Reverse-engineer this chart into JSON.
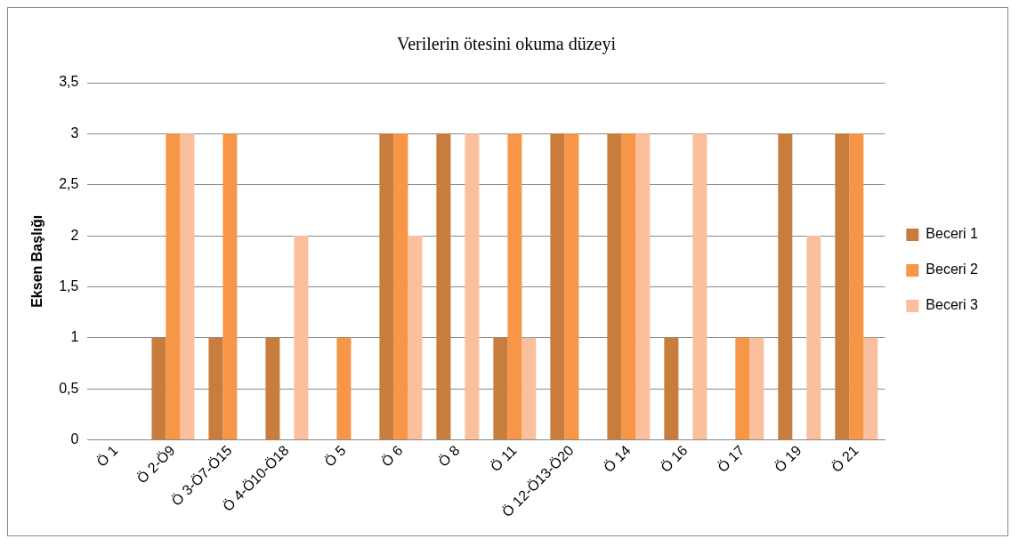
{
  "chart_data": {
    "type": "bar",
    "title": "Verilerin ötesini okuma düzeyi",
    "ylabel": "Eksen Başlığı",
    "categories": [
      "Ö 1",
      "Ö 2-Ö9",
      "Ö 3-Ö7-Ö15",
      "Ö 4-Ö10-Ö18",
      "Ö 5",
      "Ö 6",
      "Ö 8",
      "Ö 11",
      "Ö 12-Ö13-Ö20",
      "Ö 14",
      "Ö 16",
      "Ö 17",
      "Ö 19",
      "Ö 21"
    ],
    "series": [
      {
        "name": "Beceri 1",
        "color": "#c97d3c",
        "values": [
          0,
          1,
          1,
          1,
          0,
          3,
          3,
          1,
          3,
          3,
          1,
          0,
          3,
          3
        ]
      },
      {
        "name": "Beceri 2",
        "color": "#f79646",
        "values": [
          0,
          3,
          3,
          0,
          1,
          3,
          0,
          3,
          3,
          3,
          0,
          1,
          0,
          3
        ]
      },
      {
        "name": "Beceri 3",
        "color": "#fac09d",
        "values": [
          0,
          3,
          0,
          2,
          0,
          2,
          3,
          1,
          0,
          3,
          3,
          1,
          2,
          1
        ]
      }
    ],
    "ylim": [
      0,
      3.5
    ],
    "yticks": [
      0,
      {
        "value": 0.5,
        "label": "0,5"
      },
      1,
      {
        "value": 1.5,
        "label": "1,5"
      },
      2,
      {
        "value": 2.5,
        "label": "2,5"
      },
      3,
      {
        "value": 3.5,
        "label": "3,5"
      }
    ],
    "grid": "y",
    "legend": "right"
  }
}
